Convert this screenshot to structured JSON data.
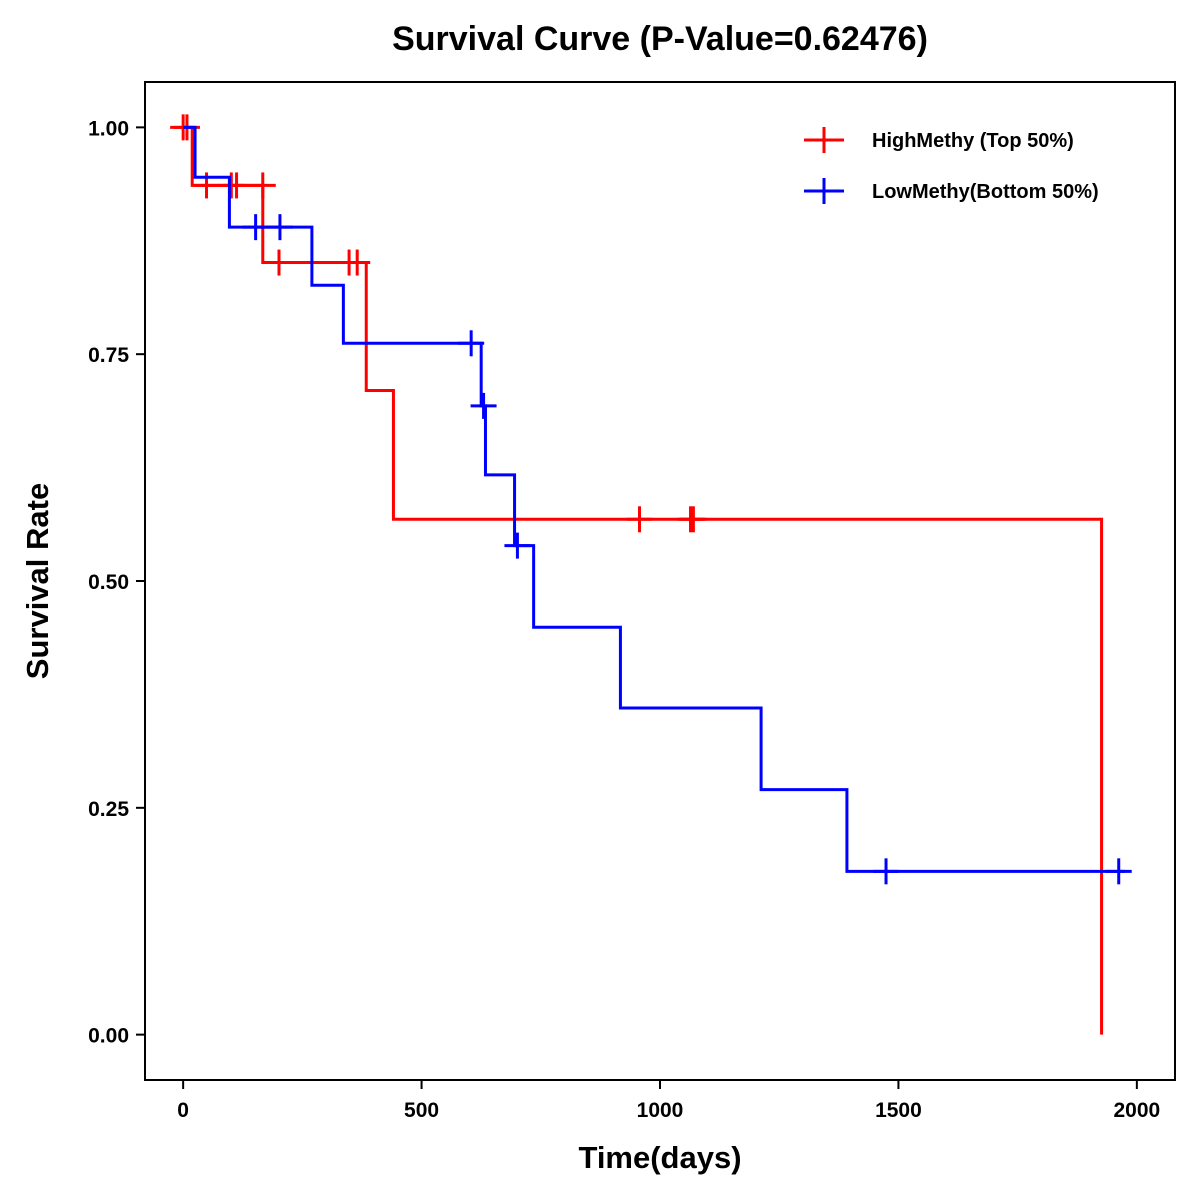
{
  "chart_data": {
    "type": "line",
    "subtype": "kaplan-meier-step",
    "title": "Survival Curve (P-Value=0.62476)",
    "xlabel": "Time(days)",
    "ylabel": "Survival Rate",
    "xlim": [
      -80,
      2080
    ],
    "ylim": [
      -0.05,
      1.05
    ],
    "xticks": [
      0,
      500,
      1000,
      1500,
      2000
    ],
    "xtick_labels": [
      "0",
      "500",
      "1000",
      "1500",
      "2000"
    ],
    "yticks": [
      0,
      0.25,
      0.5,
      0.75,
      1.0
    ],
    "ytick_labels": [
      "0.00",
      "0.25",
      "0.50",
      "0.75",
      "1.00"
    ],
    "grid": false,
    "legend_position": "top-right",
    "series": [
      {
        "name": "HighMethy (Top 50%)",
        "color": "#ff0000",
        "steps": [
          {
            "t": 0,
            "s": 1.0
          },
          {
            "t": 19,
            "s": 0.936
          },
          {
            "t": 167,
            "s": 0.851
          },
          {
            "t": 384,
            "s": 0.71
          },
          {
            "t": 441,
            "s": 0.568
          },
          {
            "t": 1926,
            "s": 0.0
          }
        ],
        "end_time": 1926,
        "censored": [
          {
            "t": 0,
            "s": 1.0
          },
          {
            "t": 8,
            "s": 1.0
          },
          {
            "t": 49,
            "s": 0.936
          },
          {
            "t": 101,
            "s": 0.936
          },
          {
            "t": 112,
            "s": 0.936
          },
          {
            "t": 167,
            "s": 0.936
          },
          {
            "t": 201,
            "s": 0.851
          },
          {
            "t": 348,
            "s": 0.851
          },
          {
            "t": 365,
            "s": 0.851
          },
          {
            "t": 957,
            "s": 0.568
          },
          {
            "t": 1064,
            "s": 0.568
          },
          {
            "t": 1070,
            "s": 0.568
          }
        ]
      },
      {
        "name": "LowMethy(Bottom 50%)",
        "color": "#0000ff",
        "steps": [
          {
            "t": 0,
            "s": 1.0
          },
          {
            "t": 25,
            "s": 0.945
          },
          {
            "t": 97,
            "s": 0.89
          },
          {
            "t": 270,
            "s": 0.826
          },
          {
            "t": 336,
            "s": 0.762
          },
          {
            "t": 625,
            "s": 0.693
          },
          {
            "t": 634,
            "s": 0.617
          },
          {
            "t": 695,
            "s": 0.539
          },
          {
            "t": 735,
            "s": 0.449
          },
          {
            "t": 917,
            "s": 0.36
          },
          {
            "t": 1212,
            "s": 0.27
          },
          {
            "t": 1392,
            "s": 0.18
          }
        ],
        "end_time": 1975,
        "censored": [
          {
            "t": 152,
            "s": 0.89
          },
          {
            "t": 203,
            "s": 0.89
          },
          {
            "t": 604,
            "s": 0.762
          },
          {
            "t": 630,
            "s": 0.693
          },
          {
            "t": 701,
            "s": 0.539
          },
          {
            "t": 1474,
            "s": 0.18
          },
          {
            "t": 1962,
            "s": 0.18
          }
        ]
      }
    ]
  }
}
